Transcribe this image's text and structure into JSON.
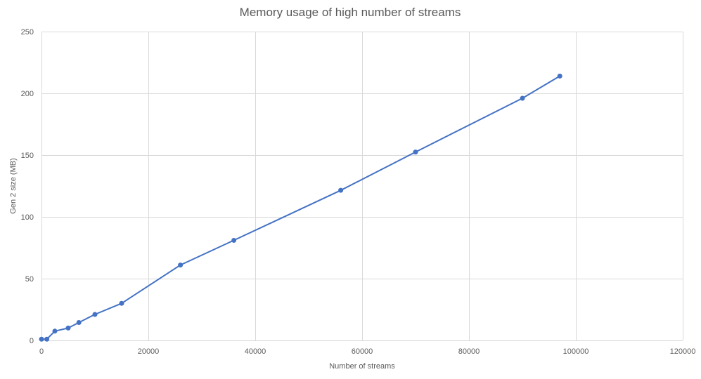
{
  "chart_data": {
    "type": "line",
    "title": "Memory usage of high number of streams",
    "xlabel": "Number of streams",
    "ylabel": "Gen 2 size (MB)",
    "xlim": [
      0,
      120000
    ],
    "ylim": [
      0,
      250
    ],
    "x_ticks": [
      0,
      20000,
      40000,
      60000,
      80000,
      100000,
      120000
    ],
    "x_tick_labels": [
      "0",
      "20000",
      "40000",
      "60000",
      "80000",
      "100000",
      "120000"
    ],
    "y_ticks": [
      0,
      50,
      100,
      150,
      200,
      250
    ],
    "y_tick_labels": [
      "0",
      "50",
      "100",
      "150",
      "200",
      "250"
    ],
    "grid": true,
    "legend": "none",
    "series": [
      {
        "color": "#4472c4",
        "x": [
          0,
          1000,
          2500,
          5000,
          7000,
          10000,
          15000,
          26000,
          36000,
          56000,
          70000,
          90000,
          97000
        ],
        "y": [
          1,
          1,
          7.5,
          10,
          14.5,
          21,
          30,
          61,
          81,
          121.5,
          152.5,
          196,
          214
        ]
      }
    ]
  }
}
